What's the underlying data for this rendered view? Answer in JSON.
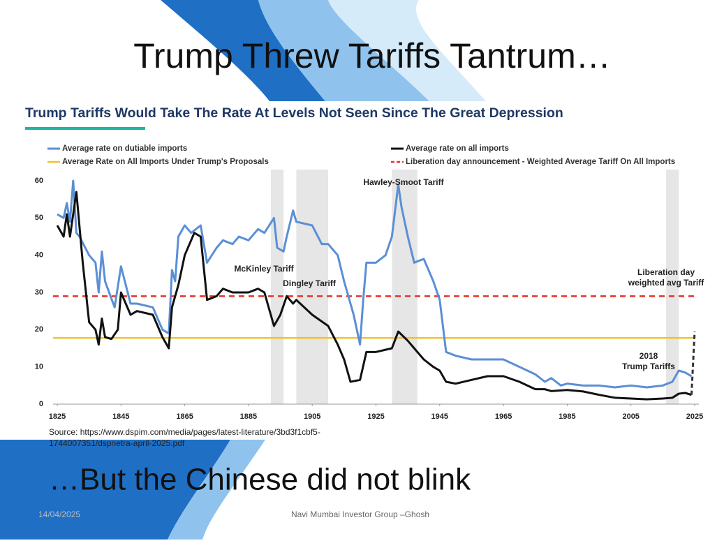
{
  "slide": {
    "title": "Trump Threw Tariffs Tantrum…",
    "subtitle": "…But the Chinese did not blink",
    "date": "14/04/2025",
    "footer": "Navi Mumbai Investor Group –Ghosh"
  },
  "chart_data": {
    "type": "line",
    "title": "Trump Tariffs Would Take The Rate At Levels Not Seen Since The Great Depression",
    "source": [
      "Source: https://www.dspim.com/media/pages/latest-literature/3bd3f1cbf5-",
      "1744007351/dspnetra-april-2025.pdf"
    ],
    "xlim": [
      1825,
      2025
    ],
    "xticks": [
      1825,
      1845,
      1865,
      1885,
      1905,
      1925,
      1945,
      1965,
      1985,
      2005,
      2025
    ],
    "ylim": [
      0,
      60
    ],
    "yticks": [
      0,
      10,
      20,
      30,
      40,
      50,
      60
    ],
    "grid": false,
    "shaded": [
      [
        1892,
        1896
      ],
      [
        1900,
        1910
      ],
      [
        1930,
        1938
      ],
      [
        2016,
        2020
      ]
    ],
    "series": [
      {
        "name": "Average rate on dutiable imports",
        "color": "#5b8fd6",
        "x": [
          1825,
          1827,
          1828,
          1829,
          1830,
          1831,
          1832,
          1835,
          1837,
          1838,
          1839,
          1840,
          1843,
          1845,
          1848,
          1850,
          1855,
          1858,
          1860,
          1861,
          1862,
          1863,
          1865,
          1867,
          1870,
          1872,
          1875,
          1877,
          1880,
          1882,
          1885,
          1888,
          1890,
          1893,
          1894,
          1896,
          1897,
          1899,
          1900,
          1905,
          1908,
          1910,
          1913,
          1915,
          1918,
          1920,
          1921,
          1922,
          1925,
          1928,
          1930,
          1932,
          1933,
          1935,
          1937,
          1940,
          1943,
          1945,
          1947,
          1950,
          1955,
          1960,
          1965,
          1970,
          1975,
          1978,
          1980,
          1983,
          1985,
          1990,
          1995,
          2000,
          2005,
          2010,
          2015,
          2018,
          2020,
          2022,
          2024
        ],
        "values": [
          51,
          50,
          54,
          49,
          60,
          46,
          45,
          40,
          38,
          30,
          41,
          33,
          26,
          37,
          27,
          27,
          26,
          20,
          19,
          36,
          33,
          45,
          48,
          46,
          48,
          38,
          42,
          44,
          43,
          45,
          44,
          47,
          46,
          50,
          42,
          41,
          45,
          52,
          49,
          48,
          43,
          43,
          40,
          33,
          24,
          16,
          28,
          38,
          38,
          40,
          45,
          59,
          53,
          45,
          38,
          39,
          33,
          28,
          14,
          13,
          12,
          12,
          12,
          10,
          8,
          6,
          7,
          5,
          5.5,
          5,
          5,
          4.5,
          5,
          4.5,
          5,
          6,
          9,
          8.5,
          7.5
        ]
      },
      {
        "name": "Average rate on all imports",
        "color": "#111111",
        "x": [
          1825,
          1827,
          1828,
          1829,
          1831,
          1833,
          1835,
          1837,
          1838,
          1839,
          1840,
          1842,
          1844,
          1845,
          1848,
          1850,
          1855,
          1858,
          1860,
          1861,
          1863,
          1865,
          1868,
          1870,
          1872,
          1875,
          1877,
          1880,
          1885,
          1888,
          1890,
          1893,
          1895,
          1897,
          1899,
          1900,
          1905,
          1910,
          1913,
          1915,
          1917,
          1920,
          1922,
          1925,
          1930,
          1932,
          1935,
          1937,
          1940,
          1943,
          1945,
          1947,
          1950,
          1955,
          1960,
          1965,
          1970,
          1975,
          1978,
          1980,
          1985,
          1990,
          1995,
          2000,
          2005,
          2010,
          2015,
          2018,
          2020,
          2022,
          2024
        ],
        "values": [
          48,
          45,
          51,
          45,
          57,
          38,
          22,
          20,
          16,
          23,
          18,
          17.5,
          20,
          30,
          24,
          25,
          24,
          18,
          15,
          26,
          32,
          40,
          46,
          45,
          28,
          29,
          31,
          30,
          30,
          31,
          30,
          21,
          24,
          29,
          27,
          28,
          24,
          21,
          16,
          12,
          6,
          6.5,
          14,
          14,
          15,
          19.5,
          17,
          15,
          12,
          10,
          9,
          6,
          5.5,
          6.5,
          7.5,
          7.5,
          6,
          4,
          4,
          3.5,
          3.8,
          3.4,
          2.5,
          1.7,
          1.5,
          1.3,
          1.5,
          1.7,
          2.8,
          3,
          2.5
        ]
      },
      {
        "color": "#333333",
        "dash": true,
        "x": [
          2024,
          2025
        ],
        "values": [
          2.5,
          19.5
        ]
      }
    ],
    "reference_lines": [
      {
        "name": "Average Rate on All Imports Under Trump's Proposals",
        "color": "#f2c12e",
        "value": 17.8,
        "dash": false
      },
      {
        "name": "Liberation day announcement - Weighted Average Tariff On All Imports",
        "color": "#e8312a",
        "value": 29,
        "dash": true
      }
    ],
    "annotations": [
      {
        "lines": [
          "Hawley-Smoot Tariff"
        ]
      },
      {
        "lines": [
          "McKinley Tariff"
        ]
      },
      {
        "lines": [
          "Dingley Tariff"
        ]
      },
      {
        "lines": [
          "Liberation day",
          "weighted avg Tariff"
        ]
      },
      {
        "lines": [
          "2018",
          "Trump Tariffs"
        ]
      }
    ]
  }
}
